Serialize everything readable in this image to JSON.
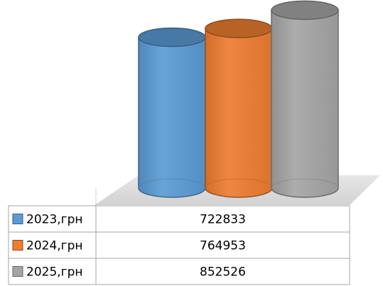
{
  "chart_data": {
    "type": "bar",
    "style": "3d-cylinder",
    "categories": [
      ""
    ],
    "series": [
      {
        "name": "2023,грн",
        "values": [
          722833
        ],
        "color": "#5b9bd5"
      },
      {
        "name": "2024,грн",
        "values": [
          764953
        ],
        "color": "#ed7d31"
      },
      {
        "name": "2025,грн",
        "values": [
          852526
        ],
        "color": "#a5a5a5"
      }
    ],
    "title": "",
    "xlabel": "",
    "ylabel": "",
    "legend": "data-table-below",
    "grid": false
  },
  "data_table": {
    "rows": [
      {
        "label": "2023,грн",
        "value": "722833"
      },
      {
        "label": "2024,грн",
        "value": "764953"
      },
      {
        "label": "2025,грн",
        "value": "852526"
      }
    ]
  }
}
